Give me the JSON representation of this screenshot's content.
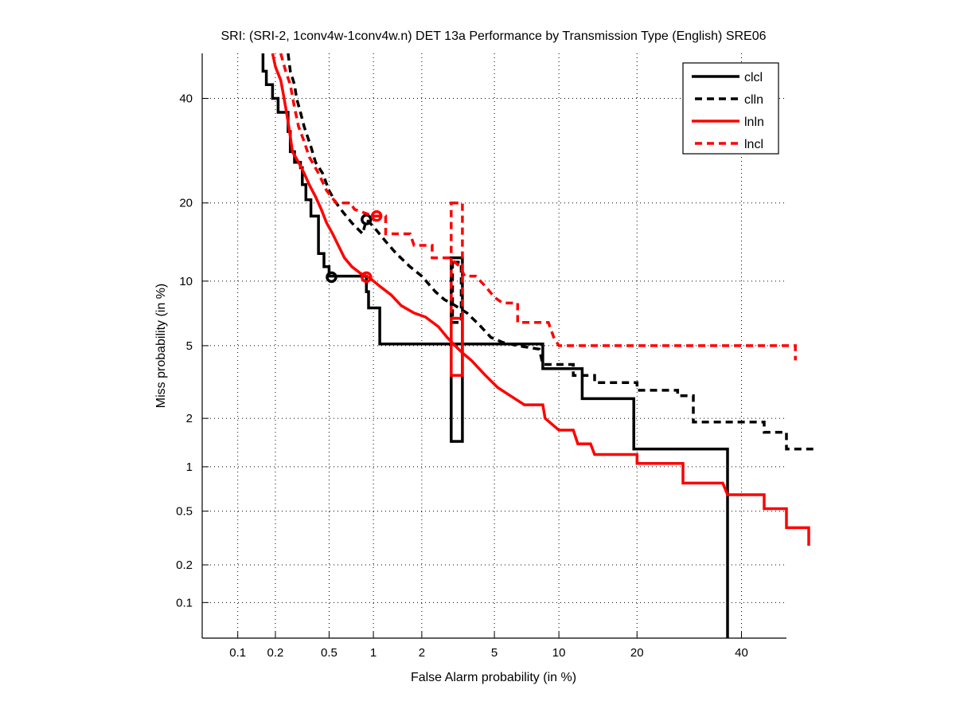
{
  "chart_data": {
    "type": "line",
    "subtype": "DET",
    "title": "SRI: (SRI-2, 1conv4w-1conv4w.n) DET 13a Performance by Transmission Type (English) SRE06",
    "xlabel": "False Alarm probability (in %)",
    "ylabel": "Miss probability (in %)",
    "xscale": "normal-deviate",
    "yscale": "normal-deviate",
    "xlim": [
      0.05,
      50
    ],
    "ylim": [
      0.05,
      50
    ],
    "grid": true,
    "xticks": [
      0.1,
      0.2,
      0.5,
      1,
      2,
      5,
      10,
      20,
      40
    ],
    "xtick_labels": [
      "0.1",
      "0.2",
      "0.5",
      "1",
      "2",
      "5",
      "10",
      "20",
      "40"
    ],
    "yticks": [
      0.1,
      0.2,
      0.5,
      1,
      2,
      5,
      10,
      20,
      40
    ],
    "ytick_labels": [
      "0.1",
      "0.2",
      "0.5",
      "1",
      "2",
      "5",
      "10",
      "20",
      "40"
    ],
    "legend": {
      "placement": "top-right",
      "entries": [
        "clcl",
        "clln",
        "lnln",
        "lncl"
      ]
    },
    "series": [
      {
        "name": "clcl",
        "color": "#000000",
        "style": "solid",
        "points": [
          [
            0.16,
            50
          ],
          [
            0.16,
            46
          ],
          [
            0.17,
            46
          ],
          [
            0.17,
            43
          ],
          [
            0.19,
            43
          ],
          [
            0.19,
            40
          ],
          [
            0.21,
            40
          ],
          [
            0.21,
            37
          ],
          [
            0.25,
            37
          ],
          [
            0.25,
            33
          ],
          [
            0.26,
            33
          ],
          [
            0.26,
            29
          ],
          [
            0.28,
            29
          ],
          [
            0.28,
            27
          ],
          [
            0.31,
            27
          ],
          [
            0.31,
            26
          ],
          [
            0.32,
            26
          ],
          [
            0.32,
            23
          ],
          [
            0.34,
            23
          ],
          [
            0.34,
            20.5
          ],
          [
            0.37,
            20.5
          ],
          [
            0.37,
            18
          ],
          [
            0.42,
            18
          ],
          [
            0.42,
            13
          ],
          [
            0.46,
            13
          ],
          [
            0.46,
            11.5
          ],
          [
            0.5,
            11.5
          ],
          [
            0.5,
            10.5
          ],
          [
            0.9,
            10.5
          ],
          [
            0.9,
            9
          ],
          [
            0.93,
            9
          ],
          [
            0.93,
            7.6
          ],
          [
            1.1,
            7.6
          ],
          [
            1.1,
            5.1
          ],
          [
            8.5,
            5.1
          ],
          [
            8.5,
            3.8
          ],
          [
            12.5,
            3.8
          ],
          [
            12.5,
            2.6
          ],
          [
            19.5,
            2.6
          ],
          [
            19.5,
            1.3
          ],
          [
            37,
            1.3
          ],
          [
            37,
            0.05
          ]
        ],
        "operating_point": [
          0.52,
          10.4
        ],
        "ci_box": {
          "x": [
            2.95,
            3.4
          ],
          "y": [
            1.45,
            12.5
          ]
        }
      },
      {
        "name": "clln",
        "color": "#000000",
        "style": "dashed",
        "points": [
          [
            0.25,
            50
          ],
          [
            0.26,
            46
          ],
          [
            0.28,
            43
          ],
          [
            0.29,
            40
          ],
          [
            0.31,
            37
          ],
          [
            0.33,
            34
          ],
          [
            0.37,
            30
          ],
          [
            0.4,
            27
          ],
          [
            0.45,
            25
          ],
          [
            0.5,
            22
          ],
          [
            0.56,
            20
          ],
          [
            0.63,
            18.5
          ],
          [
            0.72,
            17
          ],
          [
            0.85,
            15.5
          ],
          [
            0.9,
            17.5
          ],
          [
            1.0,
            16.5
          ],
          [
            1.2,
            14.5
          ],
          [
            1.4,
            13
          ],
          [
            1.7,
            11.5
          ],
          [
            2.0,
            10.5
          ],
          [
            2.4,
            9
          ],
          [
            2.7,
            8.3
          ],
          [
            3.1,
            7.8
          ],
          [
            3.6,
            7.2
          ],
          [
            4.2,
            6.3
          ],
          [
            4.8,
            5.5
          ],
          [
            5.5,
            5.2
          ],
          [
            6.5,
            5.0
          ],
          [
            8.2,
            4.8
          ],
          [
            8.5,
            4.0
          ],
          [
            11.5,
            4.0
          ],
          [
            11.5,
            3.5
          ],
          [
            14,
            3.5
          ],
          [
            14,
            3.2
          ],
          [
            20,
            3.2
          ],
          [
            20,
            2.9
          ],
          [
            27,
            2.9
          ],
          [
            27,
            2.7
          ],
          [
            30,
            2.7
          ],
          [
            30,
            1.9
          ],
          [
            45,
            1.9
          ],
          [
            45,
            1.65
          ],
          [
            50,
            1.65
          ],
          [
            50,
            1.3
          ],
          [
            56,
            1.3
          ]
        ],
        "operating_point": [
          0.9,
          17.5
        ],
        "ci_box": {
          "x": [
            3.0,
            3.35
          ],
          "y": [
            6.5,
            12
          ]
        }
      },
      {
        "name": "lnln",
        "color": "#ff0000",
        "style": "solid",
        "points": [
          [
            0.19,
            50
          ],
          [
            0.2,
            47
          ],
          [
            0.22,
            44
          ],
          [
            0.23,
            41
          ],
          [
            0.24,
            38
          ],
          [
            0.25,
            35
          ],
          [
            0.26,
            32
          ],
          [
            0.27,
            29
          ],
          [
            0.3,
            27
          ],
          [
            0.33,
            25
          ],
          [
            0.36,
            23
          ],
          [
            0.4,
            21
          ],
          [
            0.44,
            19
          ],
          [
            0.48,
            17
          ],
          [
            0.53,
            15.5
          ],
          [
            0.58,
            14
          ],
          [
            0.64,
            12.5
          ],
          [
            0.72,
            11.5
          ],
          [
            0.82,
            10.8
          ],
          [
            0.95,
            10.3
          ],
          [
            1.1,
            9.5
          ],
          [
            1.3,
            8.7
          ],
          [
            1.5,
            7.8
          ],
          [
            1.8,
            7.2
          ],
          [
            2.1,
            6.9
          ],
          [
            2.5,
            6.2
          ],
          [
            2.8,
            5.5
          ],
          [
            3.1,
            5.0
          ],
          [
            3.4,
            4.6
          ],
          [
            3.8,
            4.2
          ],
          [
            4.5,
            3.5
          ],
          [
            5.2,
            3.0
          ],
          [
            6.0,
            2.7
          ],
          [
            7.0,
            2.4
          ],
          [
            8.5,
            2.4
          ],
          [
            8.7,
            2.0
          ],
          [
            10,
            1.7
          ],
          [
            11.5,
            1.7
          ],
          [
            12,
            1.4
          ],
          [
            13.5,
            1.4
          ],
          [
            14,
            1.2
          ],
          [
            20,
            1.2
          ],
          [
            20,
            1.05
          ],
          [
            28,
            1.05
          ],
          [
            28,
            0.78
          ],
          [
            36,
            0.78
          ],
          [
            37,
            0.65
          ],
          [
            45,
            0.65
          ],
          [
            45,
            0.52
          ],
          [
            50,
            0.52
          ],
          [
            50,
            0.38
          ],
          [
            55,
            0.38
          ],
          [
            55,
            0.28
          ]
        ],
        "operating_point": [
          0.9,
          10.4
        ],
        "ci_box": {
          "x": [
            2.95,
            3.4
          ],
          "y": [
            3.5,
            6.8
          ]
        }
      },
      {
        "name": "lncl",
        "color": "#ff0000",
        "style": "dashed",
        "points": [
          [
            0.22,
            50
          ],
          [
            0.24,
            46
          ],
          [
            0.26,
            43
          ],
          [
            0.28,
            38
          ],
          [
            0.3,
            34
          ],
          [
            0.33,
            31
          ],
          [
            0.36,
            28
          ],
          [
            0.42,
            25
          ],
          [
            0.48,
            22
          ],
          [
            0.56,
            20
          ],
          [
            0.7,
            20
          ],
          [
            0.75,
            19
          ],
          [
            1.0,
            18
          ],
          [
            1.2,
            18
          ],
          [
            1.2,
            15.5
          ],
          [
            1.7,
            15.5
          ],
          [
            1.8,
            14
          ],
          [
            2.3,
            14
          ],
          [
            2.3,
            12.5
          ],
          [
            2.9,
            12.5
          ],
          [
            3.3,
            11.5
          ],
          [
            3.5,
            10.5
          ],
          [
            4.0,
            10.5
          ],
          [
            4.5,
            9.5
          ],
          [
            5.0,
            8.5
          ],
          [
            5.5,
            8.0
          ],
          [
            6.5,
            8.0
          ],
          [
            6.5,
            6.5
          ],
          [
            9,
            6.5
          ],
          [
            9.5,
            5.5
          ],
          [
            10,
            5.0
          ],
          [
            52,
            5.0
          ],
          [
            52,
            4.2
          ]
        ],
        "operating_point": [
          1.05,
          18
        ],
        "ci_box": {
          "x": [
            2.95,
            3.4
          ],
          "y": [
            6.8,
            20
          ]
        }
      }
    ]
  }
}
